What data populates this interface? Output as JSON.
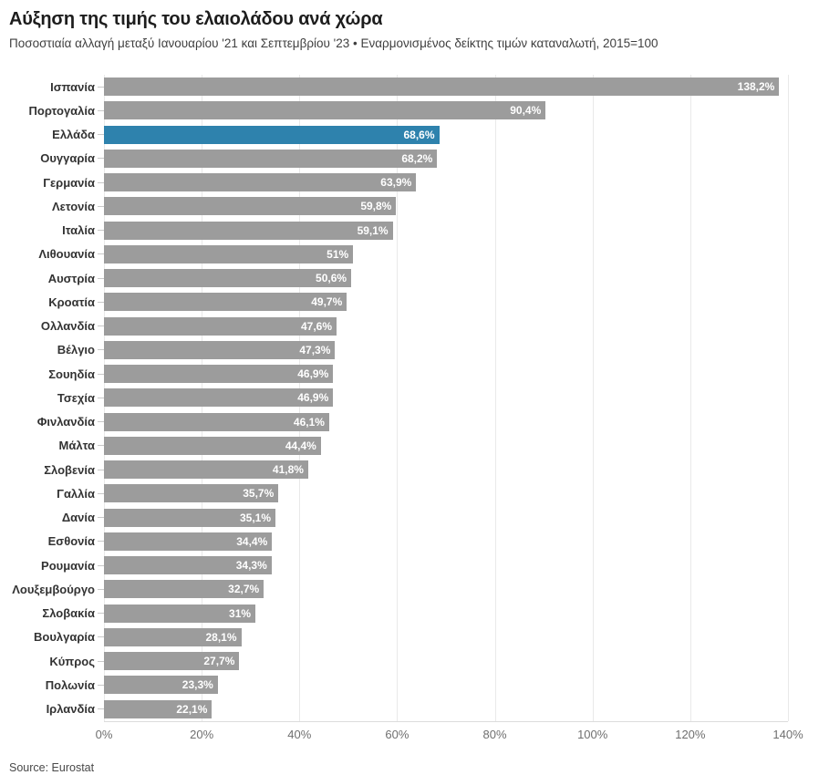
{
  "header": {
    "title": "Αύξηση της τιμής του ελαιολάδου ανά χώρα",
    "subtitle": "Ποσοστιαία αλλαγή μεταξύ Ιανουαρίου '21 και Σεπτεμβρίου '23 • Εναρμονισμένος δείκτης τιμών καταναλωτή, 2015=100"
  },
  "footer": {
    "source": "Source: Eurostat"
  },
  "colors": {
    "bar": "#9c9c9c",
    "highlight": "#2e82ad",
    "value_label": "#ffffff",
    "gridline": "#e9e9e9",
    "axis_label": "#6f6f6f"
  },
  "chart_data": {
    "type": "bar",
    "orientation": "horizontal",
    "title": "Αύξηση της τιμής του ελαιολάδου ανά χώρα",
    "subtitle": "Ποσοστιαία αλλαγή μεταξύ Ιανουαρίου '21 και Σεπτεμβρίου '23 • Εναρμονισμένος δείκτης τιμών καταναλωτή, 2015=100",
    "source": "Source: Eurostat",
    "categories": [
      "Ισπανία",
      "Πορτογαλία",
      "Ελλάδα",
      "Ουγγαρία",
      "Γερμανία",
      "Λετονία",
      "Ιταλία",
      "Λιθουανία",
      "Αυστρία",
      "Κροατία",
      "Ολλανδία",
      "Βέλγιο",
      "Σουηδία",
      "Τσεχία",
      "Φινλανδία",
      "Μάλτα",
      "Σλοβενία",
      "Γαλλία",
      "Δανία",
      "Εσθονία",
      "Ρουμανία",
      "Λουξεμβούργο",
      "Σλοβακία",
      "Βουλγαρία",
      "Κύπρος",
      "Πολωνία",
      "Ιρλανδία"
    ],
    "values": [
      138.2,
      90.4,
      68.6,
      68.2,
      63.9,
      59.8,
      59.1,
      51,
      50.6,
      49.7,
      47.6,
      47.3,
      46.9,
      46.9,
      46.1,
      44.4,
      41.8,
      35.7,
      35.1,
      34.4,
      34.3,
      32.7,
      31,
      28.1,
      27.7,
      23.3,
      22.1
    ],
    "value_labels": [
      "138,2%",
      "90,4%",
      "68,6%",
      "68,2%",
      "63,9%",
      "59,8%",
      "59,1%",
      "51%",
      "50,6%",
      "49,7%",
      "47,6%",
      "47,3%",
      "46,9%",
      "46,9%",
      "46,1%",
      "44,4%",
      "41,8%",
      "35,7%",
      "35,1%",
      "34,4%",
      "34,3%",
      "32,7%",
      "31%",
      "28,1%",
      "27,7%",
      "23,3%",
      "22,1%"
    ],
    "highlighted_category": "Ελλάδα",
    "highlight_index": 2,
    "xlabel": "",
    "ylabel": "",
    "xlim": [
      0,
      140
    ],
    "x_ticks": [
      "0%",
      "20%",
      "40%",
      "60%",
      "80%",
      "100%",
      "120%",
      "140%"
    ],
    "grid": true,
    "legend": "none"
  }
}
